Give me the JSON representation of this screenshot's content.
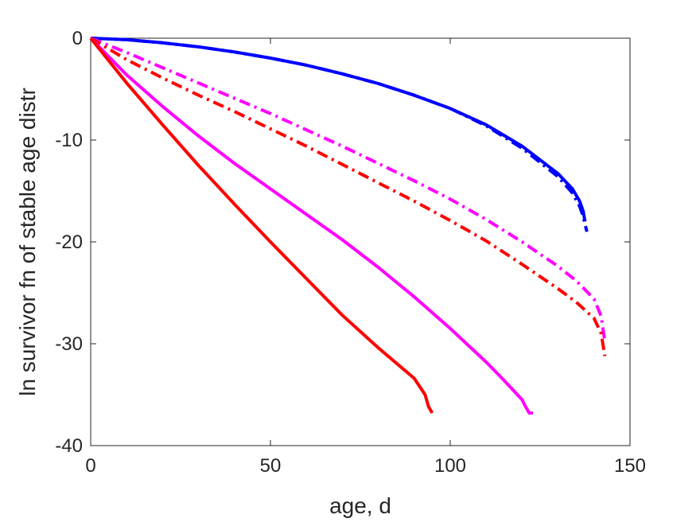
{
  "chart_data": {
    "type": "line",
    "title": "",
    "xlabel": "age, d",
    "ylabel": "ln survivor fn of stable age distr",
    "xlim": [
      0,
      150
    ],
    "ylim": [
      -40,
      0
    ],
    "xticks": [
      0,
      50,
      100,
      150
    ],
    "yticks": [
      -40,
      -30,
      -20,
      -10,
      0
    ],
    "xtick_labels": [
      "0",
      "50",
      "100",
      "150"
    ],
    "ytick_labels": [
      "-40",
      "-30",
      "-20",
      "-10",
      "0"
    ],
    "grid": false,
    "legend": "none",
    "series": [
      {
        "color": "#0000ff",
        "style": "solid",
        "x": [
          0,
          10,
          20,
          30,
          40,
          50,
          60,
          70,
          80,
          90,
          100,
          110,
          120,
          130,
          134,
          136,
          137,
          137.5
        ],
        "y": [
          0,
          -0.15,
          -0.45,
          -0.85,
          -1.35,
          -1.95,
          -2.65,
          -3.5,
          -4.45,
          -5.6,
          -6.9,
          -8.5,
          -10.6,
          -13.3,
          -14.8,
          -16.0,
          -17.0,
          -18.0
        ]
      },
      {
        "color": "#0000ff",
        "style": "dash-dot",
        "x": [
          0,
          10,
          20,
          30,
          40,
          50,
          60,
          70,
          80,
          90,
          100,
          110,
          120,
          130,
          134,
          136,
          137,
          138
        ],
        "y": [
          0,
          -0.15,
          -0.45,
          -0.85,
          -1.35,
          -1.95,
          -2.65,
          -3.5,
          -4.45,
          -5.6,
          -6.9,
          -8.6,
          -10.8,
          -13.6,
          -15.2,
          -16.5,
          -17.5,
          -19.0
        ]
      },
      {
        "color": "#ff00ff",
        "style": "dash-dot",
        "x": [
          0,
          10,
          20,
          30,
          40,
          50,
          60,
          70,
          80,
          90,
          100,
          110,
          120,
          130,
          135,
          140,
          142,
          143
        ],
        "y": [
          0,
          -1.4,
          -2.9,
          -4.4,
          -5.9,
          -7.4,
          -9.0,
          -10.6,
          -12.3,
          -14.0,
          -15.8,
          -17.8,
          -20.0,
          -22.4,
          -23.8,
          -25.6,
          -27.3,
          -29.8
        ]
      },
      {
        "color": "#ff0000",
        "style": "dash-dot",
        "x": [
          0,
          10,
          20,
          30,
          40,
          50,
          60,
          70,
          80,
          90,
          100,
          110,
          120,
          130,
          135,
          140,
          142,
          143
        ],
        "y": [
          0,
          -2.1,
          -3.9,
          -5.6,
          -7.2,
          -8.9,
          -10.6,
          -12.4,
          -14.2,
          -16.0,
          -17.9,
          -19.9,
          -22.2,
          -24.6,
          -25.9,
          -27.5,
          -29.0,
          -31.2
        ]
      },
      {
        "color": "#ff00ff",
        "style": "solid",
        "x": [
          0,
          10,
          20,
          30,
          40,
          50,
          60,
          70,
          80,
          90,
          100,
          110,
          115,
          120,
          121,
          122,
          123
        ],
        "y": [
          0,
          -3.6,
          -6.7,
          -9.6,
          -12.3,
          -14.8,
          -17.3,
          -19.8,
          -22.5,
          -25.4,
          -28.5,
          -31.8,
          -33.6,
          -35.5,
          -36.2,
          -36.8,
          -36.8
        ]
      },
      {
        "color": "#ff0000",
        "style": "solid",
        "x": [
          0,
          10,
          20,
          30,
          40,
          50,
          60,
          70,
          80,
          90,
          93,
          94,
          95
        ],
        "y": [
          0,
          -4.4,
          -8.5,
          -12.5,
          -16.3,
          -20.0,
          -23.6,
          -27.2,
          -30.4,
          -33.4,
          -35.0,
          -36.2,
          -36.8
        ]
      }
    ]
  }
}
